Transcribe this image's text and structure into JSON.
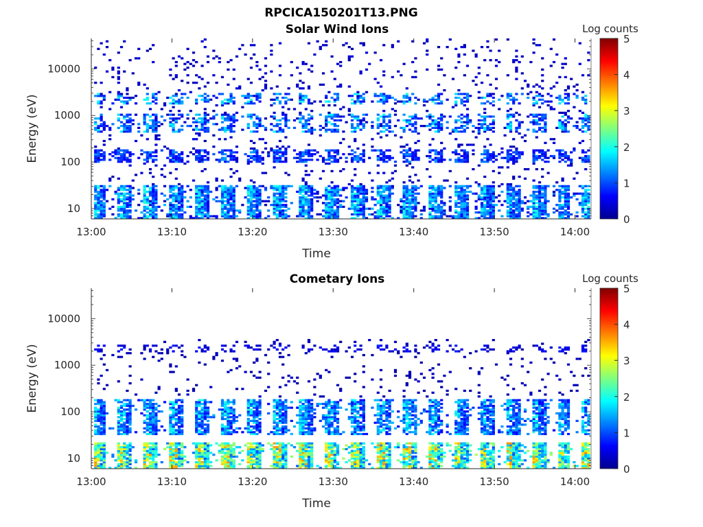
{
  "figure_title": "RPCICA150201T13.PNG",
  "colormap_stops": [
    "#00008f",
    "#0000ff",
    "#00ffff",
    "#ffff00",
    "#ff0000",
    "#800000"
  ],
  "chart_data": [
    {
      "type": "heatmap",
      "title": "Solar Wind Ions",
      "xlabel": "Time",
      "ylabel": "Energy (eV)",
      "x_scale": "time",
      "y_scale": "log",
      "xlim": [
        "13:00",
        "14:02"
      ],
      "ylim": [
        6,
        45000
      ],
      "x_ticks": [
        "13:00",
        "13:10",
        "13:20",
        "13:30",
        "13:40",
        "13:50",
        "14:00"
      ],
      "y_ticks": [
        {
          "value": 10,
          "label": "10"
        },
        {
          "value": 100,
          "label": "100"
        },
        {
          "value": 1000,
          "label": "1000"
        },
        {
          "value": 10000,
          "label": "10000"
        }
      ],
      "colorbar": {
        "label": "Log counts",
        "min": 0,
        "max": 5,
        "ticks": [
          "0",
          "1",
          "2",
          "3",
          "4",
          "5"
        ]
      },
      "scan_period_min": 3.2,
      "bands": [
        {
          "e_min": 6,
          "e_max": 30,
          "level": 1.3,
          "density": 0.85
        },
        {
          "e_min": 90,
          "e_max": 180,
          "level": 0.9,
          "density": 0.7
        },
        {
          "e_min": 400,
          "e_max": 1000,
          "level": 1.2,
          "density": 0.55
        },
        {
          "e_min": 1600,
          "e_max": 2800,
          "level": 1.3,
          "density": 0.5
        }
      ],
      "background": {
        "e_min": 6,
        "e_max": 45000,
        "level": 0.3,
        "density": 0.06
      }
    },
    {
      "type": "heatmap",
      "title": "Cometary Ions",
      "xlabel": "Time",
      "ylabel": "Energy (eV)",
      "x_scale": "time",
      "y_scale": "log",
      "xlim": [
        "13:00",
        "14:02"
      ],
      "ylim": [
        6,
        45000
      ],
      "x_ticks": [
        "13:00",
        "13:10",
        "13:20",
        "13:30",
        "13:40",
        "13:50",
        "14:00"
      ],
      "y_ticks": [
        {
          "value": 10,
          "label": "10"
        },
        {
          "value": 100,
          "label": "100"
        },
        {
          "value": 1000,
          "label": "1000"
        },
        {
          "value": 10000,
          "label": "10000"
        }
      ],
      "colorbar": {
        "label": "Log counts",
        "min": 0,
        "max": 5,
        "ticks": [
          "0",
          "1",
          "2",
          "3",
          "4",
          "5"
        ]
      },
      "scan_period_min": 3.2,
      "bands": [
        {
          "e_min": 6,
          "e_max": 22,
          "level": 2.3,
          "density": 0.9
        },
        {
          "e_min": 30,
          "e_max": 180,
          "level": 1.3,
          "density": 0.8
        },
        {
          "e_min": 1900,
          "e_max": 2700,
          "level": 0.5,
          "density": 0.35
        }
      ],
      "background": {
        "e_min": 200,
        "e_max": 3500,
        "level": 0.2,
        "density": 0.05
      }
    }
  ]
}
